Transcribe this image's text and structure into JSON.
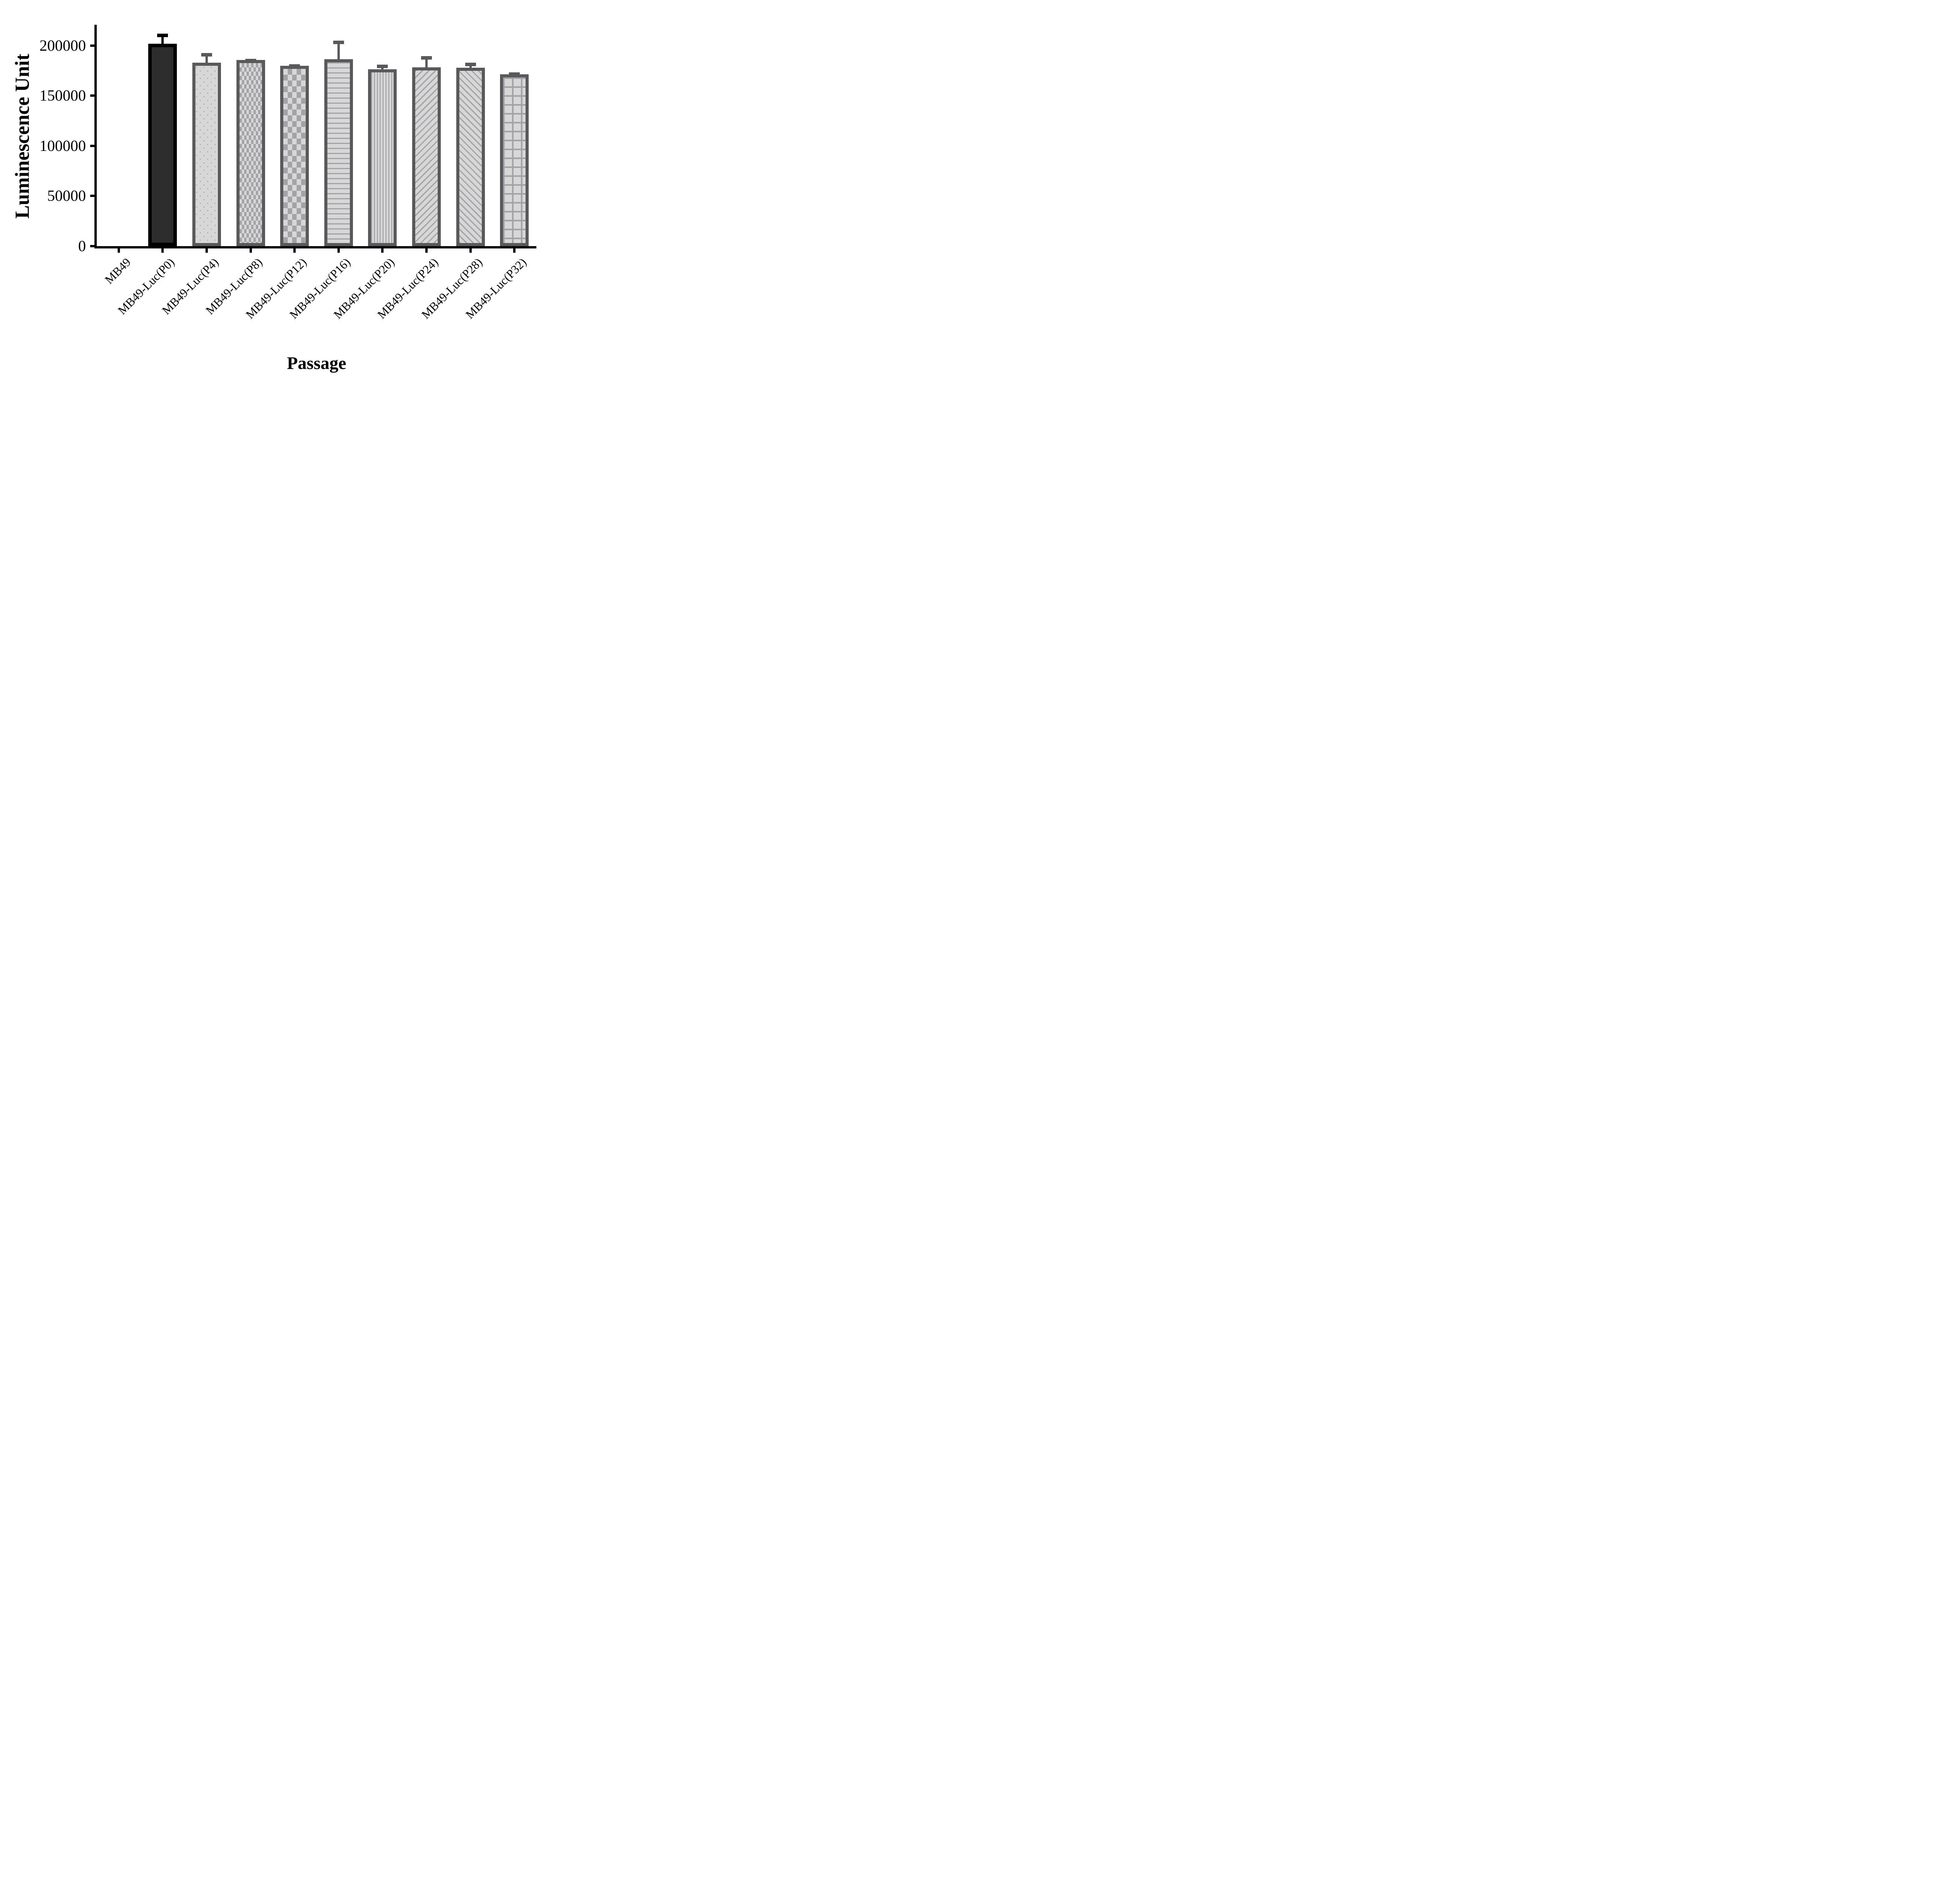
{
  "figure_background": "#ffffff",
  "chart_data": {
    "type": "bar",
    "title": "",
    "xlabel": "Passage",
    "ylabel": "Luminescence Unit",
    "ylim": [
      0,
      220000
    ],
    "yticks": [
      0,
      50000,
      100000,
      150000,
      200000
    ],
    "ytick_labels": [
      "0",
      "50000",
      "100000",
      "150000",
      "200000"
    ],
    "grid": false,
    "legend_position": "none",
    "categories": [
      "MB49",
      "MB49-Luc(P0)",
      "MB49-Luc(P4)",
      "MB49-Luc(P8)",
      "MB49-Luc(P12)",
      "MB49-Luc(P16)",
      "MB49-Luc(P20)",
      "MB49-Luc(P24)",
      "MB49-Luc(P28)",
      "MB49-Luc(P32)"
    ],
    "values": [
      0,
      202000,
      183000,
      185500,
      180000,
      186500,
      176500,
      178500,
      178000,
      171200
    ],
    "errors_plus": [
      0,
      10000,
      9500,
      1500,
      1500,
      18500,
      4500,
      11000,
      4800,
      2000
    ],
    "error_style": "upper half, capped",
    "bar_patterns": [
      "none",
      "solid-dark",
      "dots",
      "checker-fine",
      "checker",
      "hlines",
      "vlines",
      "diag-forward",
      "diag-back",
      "grid"
    ],
    "colors": {
      "axis": "#000000",
      "bar_dark_fill": "#2d2d2e",
      "bar_dark_border": "#000000",
      "bar_dark_error": "#000000",
      "bar_light_fill": "#d7d7d7",
      "bar_border_gray": "#59595b",
      "pattern_stripe_gray": "#a2a2a7",
      "pattern_dot_gray": "#9b9b9b",
      "error_gray": "#59595b",
      "text": "#000000"
    }
  }
}
